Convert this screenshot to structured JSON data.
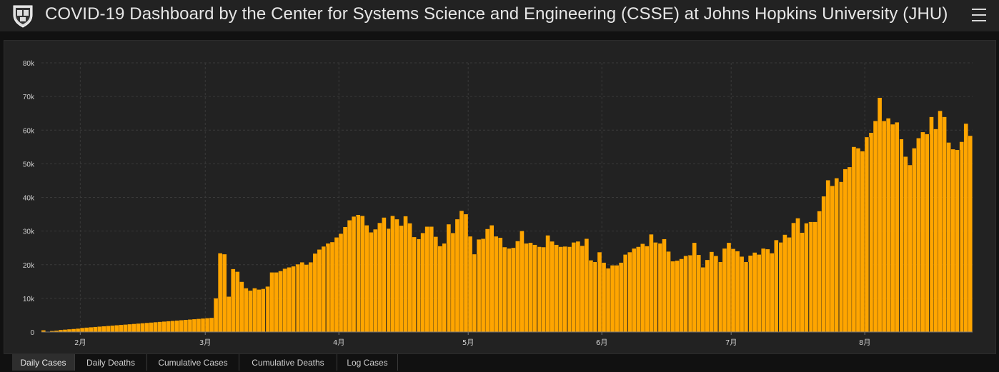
{
  "header": {
    "title": "COVID-19 Dashboard by the Center for Systems Science and Engineering (CSSE) at Johns Hopkins University (JHU)",
    "logo_icon": "university-shield-icon",
    "menu_icon": "hamburger-menu-icon"
  },
  "tabs": [
    {
      "label": "Daily Cases",
      "active": true
    },
    {
      "label": "Daily Deaths",
      "active": false
    },
    {
      "label": "Cumulative Cases",
      "active": false
    },
    {
      "label": "Cumulative Deaths",
      "active": false
    },
    {
      "label": "Log Cases",
      "active": false
    }
  ],
  "colors": {
    "bar": "#ffa500",
    "background": "#222222",
    "page": "#111111"
  },
  "chart_data": {
    "type": "bar",
    "title": "",
    "xlabel": "",
    "ylabel": "",
    "ylim": [
      0,
      80000
    ],
    "yticks": [
      0,
      10000,
      20000,
      30000,
      40000,
      50000,
      60000,
      70000,
      80000
    ],
    "ytick_labels": [
      "0",
      "10k",
      "20k",
      "30k",
      "40k",
      "50k",
      "60k",
      "70k",
      "80k"
    ],
    "x_labels": [
      {
        "day": 9,
        "label": "2月"
      },
      {
        "day": 38,
        "label": "3月"
      },
      {
        "day": 69,
        "label": "4月"
      },
      {
        "day": 99,
        "label": "5月"
      },
      {
        "day": 130,
        "label": "6月"
      },
      {
        "day": 160,
        "label": "7月"
      },
      {
        "day": 191,
        "label": "8月"
      }
    ],
    "week_lines": [
      9,
      38,
      69,
      99,
      130,
      160,
      191
    ],
    "grid": true,
    "legend": "none",
    "values": [
      500,
      100,
      300,
      400,
      600,
      700,
      800,
      900,
      1000,
      1200,
      1300,
      1400,
      1500,
      1600,
      1700,
      1800,
      1900,
      2000,
      2100,
      2200,
      2300,
      2400,
      2500,
      2600,
      2700,
      2800,
      2900,
      3000,
      3100,
      3200,
      3300,
      3400,
      3500,
      3600,
      3700,
      3800,
      3900,
      4000,
      4100,
      4200,
      10000,
      23400,
      23100,
      10500,
      18700,
      17900,
      14900,
      13000,
      12300,
      13000,
      12600,
      12800,
      13500,
      17700,
      17700,
      18100,
      18800,
      19200,
      19500,
      20100,
      20700,
      20000,
      20700,
      23300,
      24500,
      25400,
      26300,
      26700,
      28100,
      29200,
      31200,
      33200,
      34300,
      34800,
      34500,
      31700,
      29600,
      30500,
      32400,
      34000,
      30700,
      34500,
      33500,
      31600,
      34400,
      32300,
      28200,
      27600,
      29400,
      31300,
      31300,
      28300,
      25500,
      26300,
      32000,
      29400,
      33500,
      36000,
      35000,
      28400,
      23100,
      27500,
      27700,
      30600,
      31700,
      28400,
      28000,
      25200,
      24800,
      25000,
      27000,
      30000,
      26300,
      26500,
      25900,
      25300,
      25200,
      28700,
      26900,
      25900,
      25300,
      25400,
      25300,
      26600,
      26900,
      25600,
      27700,
      21300,
      20800,
      23700,
      20600,
      18900,
      19800,
      19800,
      20600,
      23000,
      23700,
      24800,
      25300,
      26200,
      25500,
      29000,
      26600,
      26300,
      27600,
      23900,
      21000,
      21200,
      21700,
      22600,
      22800,
      26500,
      22900,
      19200,
      21400,
      23800,
      22600,
      20800,
      24800,
      26500,
      24700,
      24000,
      22400,
      20800,
      22700,
      23600,
      23000,
      24800,
      24600,
      23400,
      27300,
      26600,
      28900,
      28100,
      32400,
      33800,
      29500,
      32300,
      32700,
      32700,
      35900,
      40300,
      45100,
      43400,
      45700,
      44600,
      48400,
      49000,
      55000,
      54600,
      53700,
      57900,
      59200,
      62700,
      69600,
      62700,
      63500,
      61700,
      62300,
      57300,
      52100,
      49600,
      54600,
      57600,
      59400,
      58800,
      63900,
      60300,
      65700,
      63900,
      56300,
      54300,
      54100,
      56500,
      61900,
      58300
    ]
  }
}
